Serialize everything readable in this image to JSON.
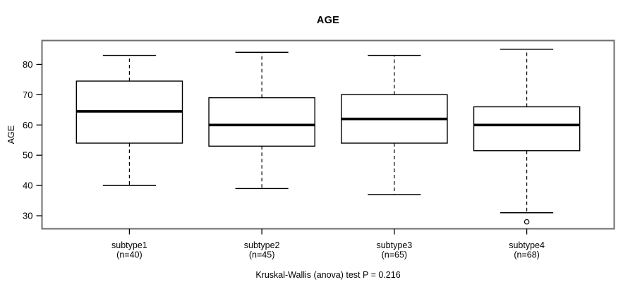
{
  "figure": {
    "title": "AGE",
    "y_axis_title": "AGE",
    "caption": "Kruskal-Wallis (anova) test P = 0.216"
  },
  "colors": {
    "background": "#ffffff",
    "frame": "#6e6e6e",
    "line": "#000000",
    "text": "#000000"
  },
  "chart_data": {
    "type": "boxplot",
    "title": "AGE",
    "xlabel": "",
    "ylabel": "AGE",
    "ylim": [
      25.7,
      87.9
    ],
    "yticks": [
      30,
      40,
      50,
      60,
      70,
      80
    ],
    "grid": false,
    "legend": false,
    "categories": [
      "subtype1",
      "subtype2",
      "subtype3",
      "subtype4"
    ],
    "category_sublabels": [
      "(n=40)",
      "(n=45)",
      "(n=65)",
      "(n=68)"
    ],
    "boxes": [
      {
        "category": "subtype1",
        "n": 40,
        "whisker_low": 40,
        "q1": 54,
        "median": 64.5,
        "q3": 74.5,
        "whisker_high": 83,
        "outliers": []
      },
      {
        "category": "subtype2",
        "n": 45,
        "whisker_low": 39,
        "q1": 53,
        "median": 60,
        "q3": 69,
        "whisker_high": 84,
        "outliers": []
      },
      {
        "category": "subtype3",
        "n": 65,
        "whisker_low": 37,
        "q1": 54,
        "median": 62,
        "q3": 70,
        "whisker_high": 83,
        "outliers": []
      },
      {
        "category": "subtype4",
        "n": 68,
        "whisker_low": 31,
        "q1": 51.5,
        "median": 60,
        "q3": 66,
        "whisker_high": 85,
        "outliers": [
          28
        ]
      }
    ],
    "annotation": "Kruskal-Wallis (anova) test P = 0.216"
  }
}
